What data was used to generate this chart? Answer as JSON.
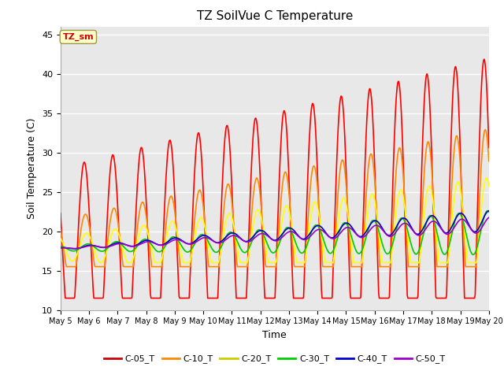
{
  "title": "TZ SoilVue C Temperature",
  "xlabel": "Time",
  "ylabel": "Soil Temperature (C)",
  "ylim": [
    10,
    46
  ],
  "yticks": [
    10,
    15,
    20,
    25,
    30,
    35,
    40,
    45
  ],
  "n_days": 15,
  "x_labels": [
    "May 5",
    "May 6",
    "May 7",
    "May 8",
    "May 9",
    "May 10",
    "May 11",
    "May 12",
    "May 13",
    "May 14",
    "May 15",
    "May 16",
    "May 17",
    "May 18",
    "May 19",
    "May 20"
  ],
  "series_colors": {
    "C-05_T": "#ff0000",
    "C-10_T": "#ff8800",
    "C-20_T": "#ffff00",
    "C-30_T": "#00cc00",
    "C-40_T": "#0000cc",
    "C-50_T": "#9900cc"
  },
  "annotation_text": "TZ_sm",
  "annotation_bg": "#ffffcc",
  "annotation_border": "#999944",
  "annotation_color": "#cc0000",
  "background_color": "#ffffff",
  "plot_bg_color": "#e8e8e8",
  "grid_color": "#ffffff",
  "legend_colors": [
    "#cc0000",
    "#ff8800",
    "#cccc00",
    "#00cc00",
    "#0000cc",
    "#9900cc"
  ],
  "legend_labels": [
    "C-05_T",
    "C-10_T",
    "C-20_T",
    "C-30_T",
    "C-40_T",
    "C-50_T"
  ],
  "line_width": 1.2
}
